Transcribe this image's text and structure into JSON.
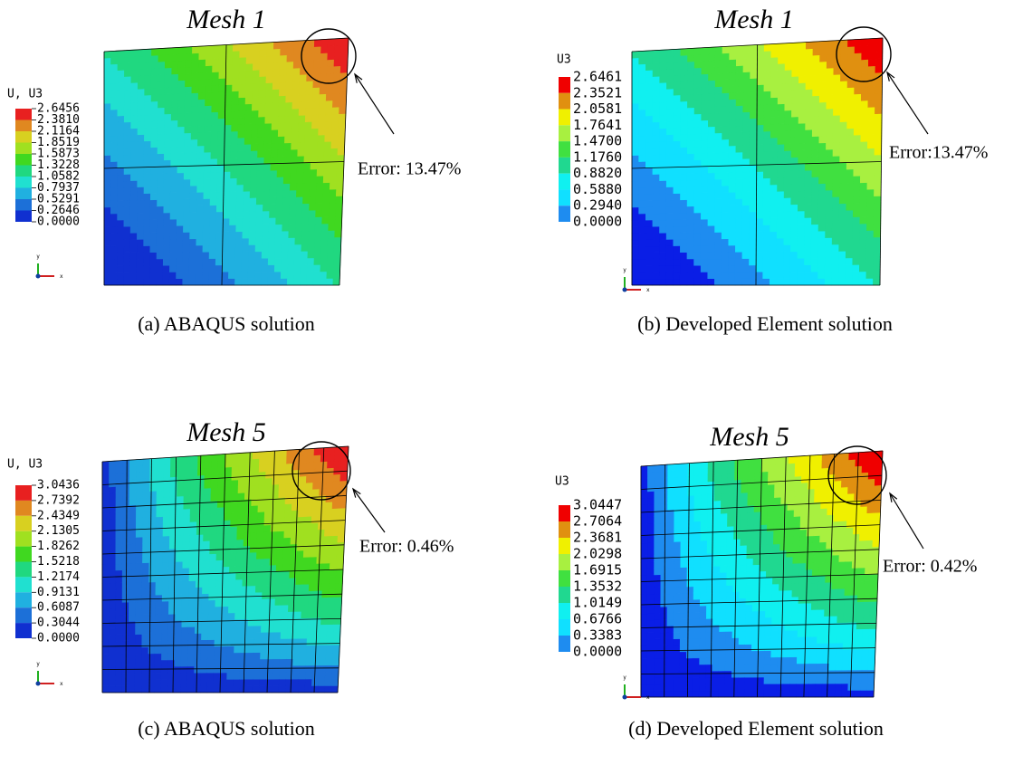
{
  "panels": [
    {
      "title": "Mesh 1",
      "legend_title": "U, U3",
      "legend_labels": [
        "2.6456",
        "2.3810",
        "2.1164",
        "1.8519",
        "1.5873",
        "1.3228",
        "1.0582",
        "0.7937",
        "0.5291",
        "0.2646",
        "0.0000"
      ],
      "error": "Error: 13.47%",
      "caption": "(a)  ABAQUS solution",
      "axis_x": "x",
      "axis_y": "y"
    },
    {
      "title": "Mesh 1",
      "legend_title": "U3",
      "legend_labels": [
        "2.6461",
        "2.3521",
        "2.0581",
        "1.7641",
        "1.4700",
        "1.1760",
        "0.8820",
        "0.5880",
        "0.2940",
        "0.0000"
      ],
      "error": "Error:13.47%",
      "caption": "(b) Developed Element solution",
      "axis_x": "x",
      "axis_y": "y"
    },
    {
      "title": "Mesh 5",
      "legend_title": "U, U3",
      "legend_labels": [
        "3.0436",
        "2.7392",
        "2.4349",
        "2.1305",
        "1.8262",
        "1.5218",
        "1.2174",
        "0.9131",
        "0.6087",
        "0.3044",
        "0.0000"
      ],
      "error": "Error: 0.46%",
      "caption": "(c) ABAQUS solution",
      "axis_x": "x",
      "axis_y": "y"
    },
    {
      "title": "Mesh 5",
      "legend_title": "U3",
      "legend_labels": [
        "3.0447",
        "2.7064",
        "2.3681",
        "2.0298",
        "1.6915",
        "1.3532",
        "1.0149",
        "0.6766",
        "0.3383",
        "0.0000"
      ],
      "error": "Error: 0.42%",
      "caption": "(d) Developed Element solution",
      "axis_x": "x",
      "axis_y": "y"
    }
  ]
}
